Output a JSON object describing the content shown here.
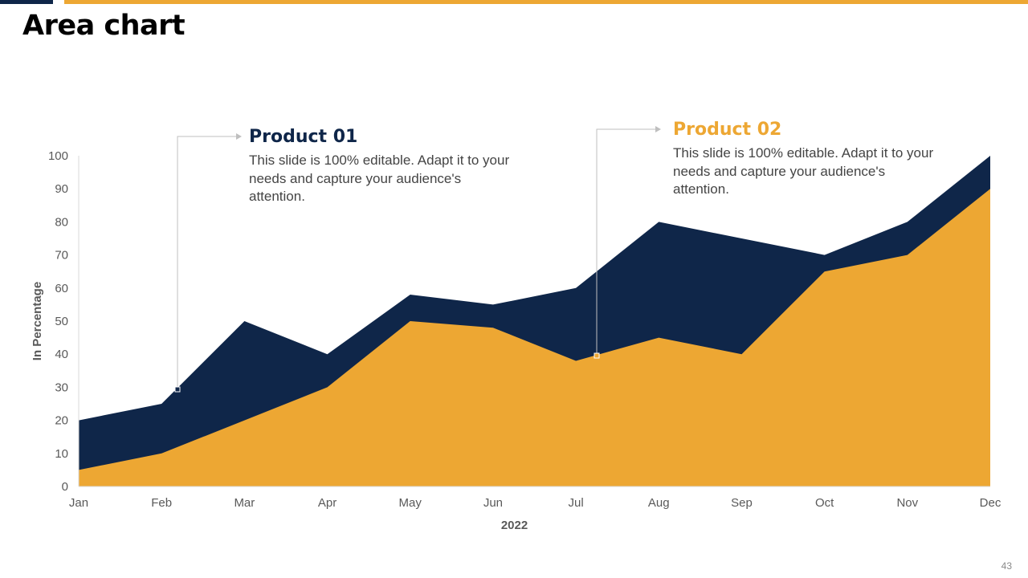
{
  "slide": {
    "title": "Area chart",
    "page_number": "43"
  },
  "colors": {
    "product01": "#0f2649",
    "product02": "#eda733",
    "accent_dark": "#0f2649",
    "accent_gold": "#eda733"
  },
  "callouts": [
    {
      "heading": "Product 01",
      "body": "This slide is 100% editable. Adapt it to your needs and capture your audience's attention."
    },
    {
      "heading": "Product 02",
      "body": "This slide is 100% editable. Adapt it to your needs and capture your audience's attention."
    }
  ],
  "chart_data": {
    "type": "area",
    "title": "",
    "xlabel": "2022",
    "ylabel": "In Percentage",
    "ylim": [
      0,
      100
    ],
    "yticks": [
      0,
      10,
      20,
      30,
      40,
      50,
      60,
      70,
      80,
      90,
      100
    ],
    "categories": [
      "Jan",
      "Feb",
      "Mar",
      "Apr",
      "May",
      "Jun",
      "Jul",
      "Aug",
      "Sep",
      "Oct",
      "Nov",
      "Dec"
    ],
    "series": [
      {
        "name": "Product 01",
        "color": "#0f2649",
        "values": [
          20,
          25,
          50,
          40,
          58,
          55,
          60,
          80,
          75,
          70,
          80,
          100
        ]
      },
      {
        "name": "Product 02",
        "color": "#eda733",
        "values": [
          5,
          10,
          20,
          30,
          50,
          48,
          38,
          45,
          40,
          65,
          70,
          90
        ]
      }
    ],
    "grid": false,
    "legend": "none"
  }
}
